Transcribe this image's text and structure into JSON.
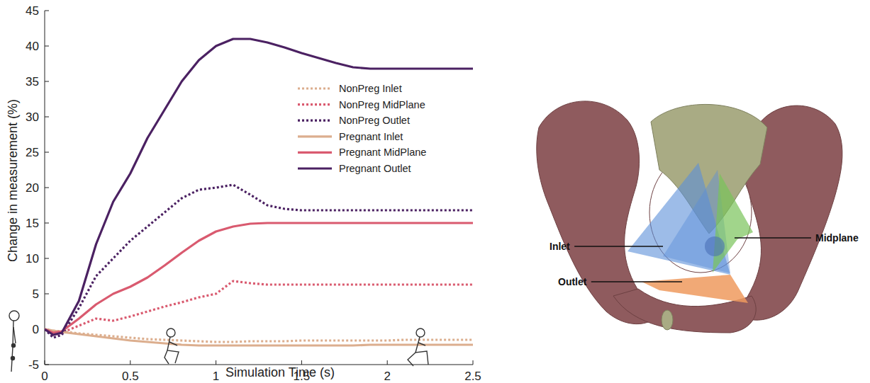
{
  "chart_data": {
    "type": "line",
    "xlabel": "Simulation Time (s)",
    "ylabel": "Change in measurement (%)",
    "xlim": [
      0,
      2.5
    ],
    "xticks": [
      0,
      0.5,
      1,
      1.5,
      2,
      2.5
    ],
    "ylim": [
      -5,
      45
    ],
    "yticks": [
      -5,
      0,
      5,
      10,
      15,
      20,
      25,
      30,
      35,
      40,
      45
    ],
    "grid": false,
    "legend": "upper right",
    "x": [
      0,
      0.05,
      0.1,
      0.2,
      0.3,
      0.4,
      0.5,
      0.6,
      0.7,
      0.8,
      0.9,
      1.0,
      1.1,
      1.2,
      1.3,
      1.4,
      1.5,
      1.6,
      1.7,
      1.8,
      1.9,
      2.0,
      2.1,
      2.2,
      2.3,
      2.4,
      2.5
    ],
    "series": [
      {
        "name": "NonPreg Inlet",
        "color": "#dcae8e",
        "line_style": "dotted",
        "values": [
          0,
          -0.2,
          -0.3,
          -0.6,
          -0.8,
          -1.0,
          -1.2,
          -1.4,
          -1.5,
          -1.6,
          -1.7,
          -1.8,
          -1.8,
          -1.7,
          -1.7,
          -1.7,
          -1.6,
          -1.6,
          -1.6,
          -1.6,
          -1.6,
          -1.6,
          -1.5,
          -1.5,
          -1.5,
          -1.5,
          -1.5
        ]
      },
      {
        "name": "NonPreg MidPlane",
        "color": "#d95a6f",
        "line_style": "dotted",
        "values": [
          0,
          -0.8,
          -0.5,
          0.5,
          1.5,
          1.2,
          1.8,
          2.5,
          3.2,
          3.8,
          4.5,
          5.0,
          6.8,
          6.5,
          6.3,
          6.3,
          6.3,
          6.3,
          6.3,
          6.3,
          6.3,
          6.3,
          6.3,
          6.3,
          6.3,
          6.3,
          6.3
        ]
      },
      {
        "name": "NonPreg Outlet",
        "color": "#4b2162",
        "line_style": "dotted",
        "values": [
          0,
          -1.2,
          -0.8,
          3,
          7.5,
          10,
          12.5,
          14.5,
          16.5,
          18.5,
          19.7,
          20,
          20.4,
          19,
          17.5,
          17,
          16.8,
          16.8,
          16.8,
          16.8,
          16.8,
          16.8,
          16.8,
          16.8,
          16.8,
          16.8,
          16.8
        ]
      },
      {
        "name": "Pregnant Inlet",
        "color": "#dcae8e",
        "line_style": "solid",
        "values": [
          0,
          -0.2,
          -0.4,
          -0.7,
          -1.0,
          -1.3,
          -1.6,
          -1.8,
          -2.0,
          -2.2,
          -2.3,
          -2.3,
          -2.3,
          -2.3,
          -2.3,
          -2.3,
          -2.3,
          -2.3,
          -2.3,
          -2.3,
          -2.2,
          -2.2,
          -2.2,
          -2.2,
          -2.2,
          -2.2,
          -2.2
        ]
      },
      {
        "name": "Pregnant MidPlane",
        "color": "#d95a6f",
        "line_style": "solid",
        "values": [
          0,
          -0.5,
          -0.3,
          1.5,
          3.5,
          5,
          6,
          7.3,
          9,
          10.8,
          12.5,
          13.8,
          14.5,
          14.9,
          15,
          15,
          15,
          15,
          15,
          15,
          15,
          15,
          15,
          15,
          15,
          15,
          15
        ]
      },
      {
        "name": "Pregnant Outlet",
        "color": "#4b2162",
        "line_style": "solid",
        "values": [
          0,
          -0.8,
          -0.5,
          4,
          12,
          18,
          22,
          27,
          31,
          35,
          38,
          40,
          41,
          41,
          40.5,
          39.8,
          39,
          38.3,
          37.6,
          37,
          36.8,
          36.8,
          36.8,
          36.8,
          36.8,
          36.8,
          36.8
        ]
      }
    ]
  },
  "diagram": {
    "labels": [
      "Inlet",
      "Outlet",
      "Midplane"
    ]
  }
}
